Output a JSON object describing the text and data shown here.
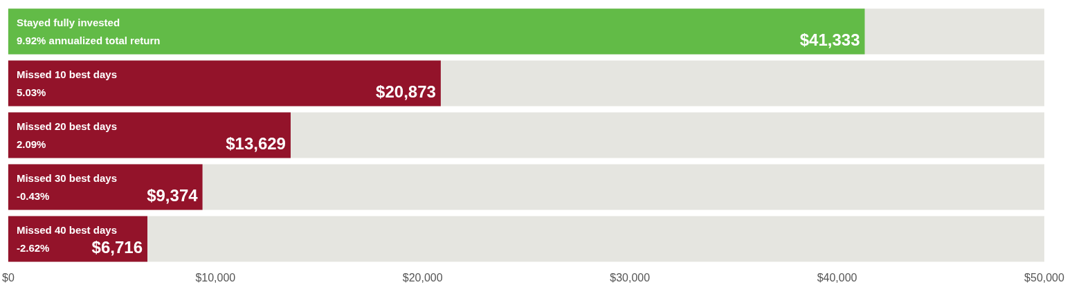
{
  "chart_data": {
    "type": "bar",
    "orientation": "horizontal",
    "categories": [
      "Stayed fully invested\n9.92% annualized total return",
      "Missed 10 best days\n5.03%",
      "Missed 20 best days\n2.09%",
      "Missed 30 best days\n-0.43%",
      "Missed 40 best days\n-2.62%"
    ],
    "values": [
      41333,
      20873,
      13629,
      9374,
      6716
    ],
    "colors": [
      "#62bb47",
      "#93132a",
      "#93132a",
      "#93132a",
      "#93132a"
    ],
    "value_labels": [
      "$41,333",
      "$20,873",
      "$13,629",
      "$9,374",
      "$6,716"
    ],
    "xlim": [
      0,
      50000
    ],
    "xticks": [
      {
        "value": 0,
        "label": "$0"
      },
      {
        "value": 10000,
        "label": "$10,000"
      },
      {
        "value": 20000,
        "label": "$20,000"
      },
      {
        "value": 30000,
        "label": "$30,000"
      },
      {
        "value": 40000,
        "label": "$40,000"
      },
      {
        "value": 50000,
        "label": "$50,000"
      }
    ],
    "grid": false
  }
}
